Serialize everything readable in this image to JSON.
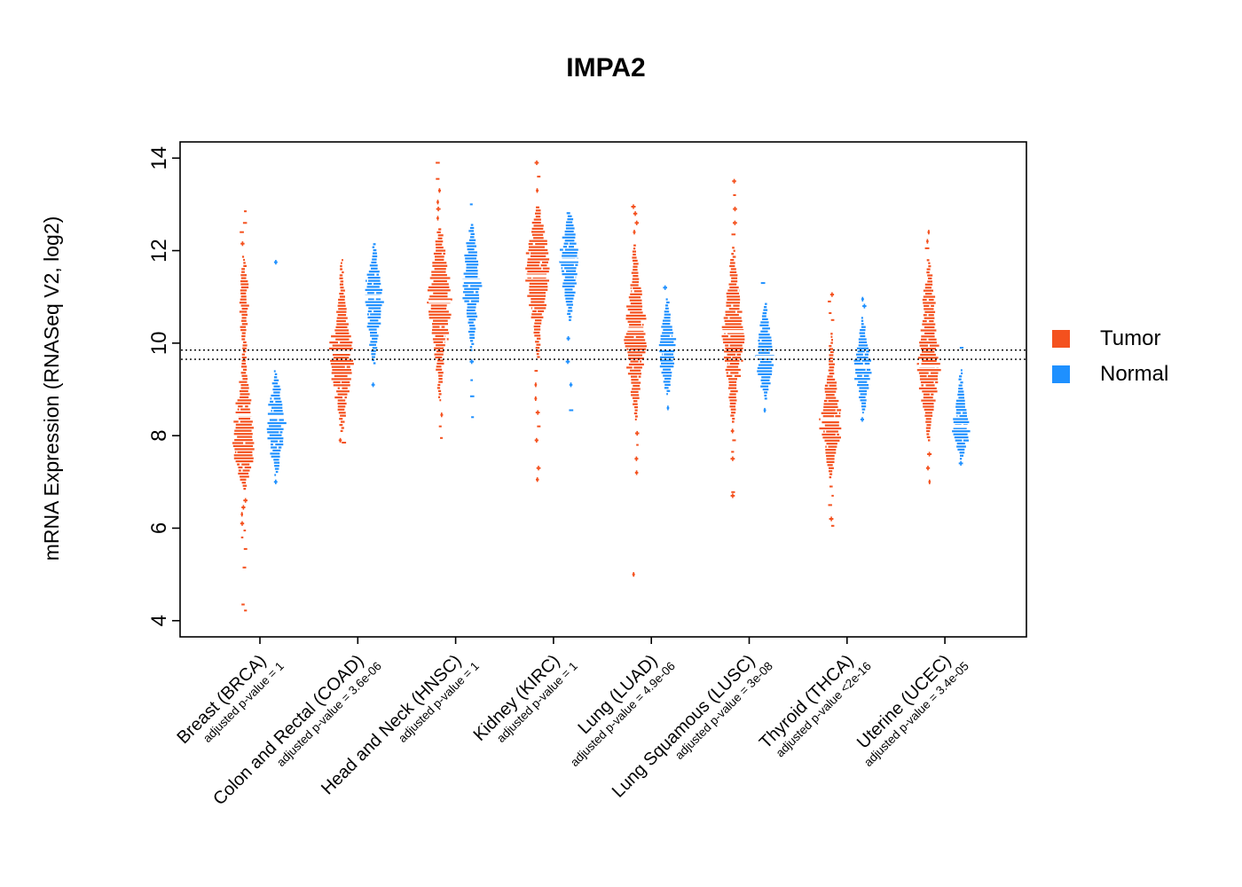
{
  "chart_data": {
    "type": "violin",
    "title": "IMPA2",
    "ylabel": "mRNA Expression (RNASeq V2, log2)",
    "ylim": [
      4,
      14
    ],
    "yticks": [
      4,
      6,
      8,
      10,
      12,
      14
    ],
    "reference_lines": [
      9.85,
      9.65
    ],
    "legend": [
      {
        "label": "Tumor",
        "color": "#F4511E"
      },
      {
        "label": "Normal",
        "color": "#1E90FF"
      }
    ],
    "categories": [
      {
        "name": "Breast (BRCA)",
        "pvalue_label": "adjusted p-value = 1",
        "tumor": {
          "median": 8.45,
          "width_scale": 0.95,
          "profile": [
            [
              6.85,
              0.12
            ],
            [
              7.1,
              0.45
            ],
            [
              7.4,
              0.8
            ],
            [
              7.7,
              1.0
            ],
            [
              8.0,
              1.0
            ],
            [
              8.3,
              0.9
            ],
            [
              8.6,
              0.75
            ],
            [
              8.9,
              0.55
            ],
            [
              9.2,
              0.35
            ],
            [
              9.6,
              0.2
            ],
            [
              10.0,
              0.22
            ],
            [
              10.5,
              0.3
            ],
            [
              10.9,
              0.38
            ],
            [
              11.3,
              0.38
            ],
            [
              11.6,
              0.2
            ],
            [
              11.9,
              0.08
            ]
          ],
          "outliers_high": [
            12.15,
            12.4,
            12.6,
            12.85
          ],
          "outliers_low": [
            6.6,
            6.45,
            6.3,
            6.1,
            5.95,
            5.8,
            5.55,
            5.15,
            4.35,
            4.22
          ]
        },
        "normal": {
          "median": 8.4,
          "width_scale": 0.9,
          "profile": [
            [
              7.15,
              0.12
            ],
            [
              7.4,
              0.4
            ],
            [
              7.7,
              0.7
            ],
            [
              8.0,
              0.95
            ],
            [
              8.3,
              1.0
            ],
            [
              8.6,
              0.85
            ],
            [
              8.9,
              0.55
            ],
            [
              9.15,
              0.3
            ],
            [
              9.4,
              0.14
            ]
          ],
          "outliers_high": [
            11.75
          ],
          "outliers_low": [
            7.0
          ]
        }
      },
      {
        "name": "Colon and Rectal (COAD)",
        "pvalue_label": "adjusted p-value = 3.6e-06",
        "tumor": {
          "median": 9.8,
          "width_scale": 1.05,
          "profile": [
            [
              8.1,
              0.12
            ],
            [
              8.5,
              0.3
            ],
            [
              8.9,
              0.55
            ],
            [
              9.3,
              0.85
            ],
            [
              9.6,
              1.0
            ],
            [
              9.9,
              1.0
            ],
            [
              10.2,
              0.8
            ],
            [
              10.5,
              0.55
            ],
            [
              10.8,
              0.35
            ],
            [
              11.2,
              0.2
            ],
            [
              11.6,
              0.12
            ],
            [
              11.95,
              0.06
            ]
          ],
          "outliers_high": [],
          "outliers_low": [
            7.9,
            7.85
          ]
        },
        "normal": {
          "median": 11.0,
          "width_scale": 0.95,
          "profile": [
            [
              9.5,
              0.1
            ],
            [
              9.9,
              0.3
            ],
            [
              10.3,
              0.55
            ],
            [
              10.7,
              0.85
            ],
            [
              11.0,
              1.0
            ],
            [
              11.3,
              0.85
            ],
            [
              11.6,
              0.55
            ],
            [
              11.9,
              0.3
            ],
            [
              12.15,
              0.12
            ]
          ],
          "outliers_high": [],
          "outliers_low": [
            9.1
          ]
        }
      },
      {
        "name": "Head and Neck (HNSC)",
        "pvalue_label": "adjusted p-value = 1",
        "tumor": {
          "median": 10.9,
          "width_scale": 1.0,
          "profile": [
            [
              8.7,
              0.08
            ],
            [
              9.1,
              0.18
            ],
            [
              9.5,
              0.35
            ],
            [
              9.9,
              0.55
            ],
            [
              10.3,
              0.8
            ],
            [
              10.7,
              1.0
            ],
            [
              11.1,
              1.0
            ],
            [
              11.5,
              0.8
            ],
            [
              11.9,
              0.55
            ],
            [
              12.2,
              0.32
            ],
            [
              12.5,
              0.15
            ]
          ],
          "outliers_high": [
            12.7,
            12.9,
            13.05,
            13.3,
            13.55,
            13.9
          ],
          "outliers_low": [
            8.45,
            8.2,
            7.95
          ]
        },
        "normal": {
          "median": 11.35,
          "width_scale": 0.95,
          "profile": [
            [
              9.85,
              0.12
            ],
            [
              10.2,
              0.3
            ],
            [
              10.6,
              0.55
            ],
            [
              11.0,
              0.85
            ],
            [
              11.35,
              1.0
            ],
            [
              11.7,
              0.85
            ],
            [
              12.0,
              0.6
            ],
            [
              12.3,
              0.32
            ],
            [
              12.6,
              0.14
            ]
          ],
          "outliers_high": [
            13.0
          ],
          "outliers_low": [
            9.6,
            9.2,
            8.85,
            8.4
          ]
        }
      },
      {
        "name": "Kidney (KIRC)",
        "pvalue_label": "adjusted p-value = 1",
        "tumor": {
          "median": 11.45,
          "width_scale": 1.1,
          "profile": [
            [
              9.7,
              0.12
            ],
            [
              10.0,
              0.2
            ],
            [
              10.4,
              0.35
            ],
            [
              10.8,
              0.65
            ],
            [
              11.1,
              0.95
            ],
            [
              11.45,
              1.0
            ],
            [
              11.8,
              0.95
            ],
            [
              12.1,
              0.8
            ],
            [
              12.4,
              0.55
            ],
            [
              12.7,
              0.3
            ],
            [
              13.0,
              0.12
            ]
          ],
          "outliers_high": [
            13.3,
            13.6,
            13.9
          ],
          "outliers_low": [
            9.4,
            9.1,
            8.8,
            8.5,
            8.2,
            7.9,
            7.3,
            7.05
          ]
        },
        "normal": {
          "median": 11.8,
          "width_scale": 0.95,
          "profile": [
            [
              10.5,
              0.12
            ],
            [
              10.9,
              0.38
            ],
            [
              11.3,
              0.7
            ],
            [
              11.6,
              0.95
            ],
            [
              11.9,
              1.0
            ],
            [
              12.2,
              0.75
            ],
            [
              12.5,
              0.45
            ],
            [
              12.85,
              0.15
            ]
          ],
          "outliers_high": [],
          "outliers_low": [
            10.1,
            9.6,
            9.1,
            8.55
          ]
        }
      },
      {
        "name": "Lung (LUAD)",
        "pvalue_label": "adjusted p-value = 4.9e-06",
        "tumor": {
          "median": 10.3,
          "width_scale": 1.0,
          "profile": [
            [
              8.35,
              0.1
            ],
            [
              8.7,
              0.25
            ],
            [
              9.1,
              0.45
            ],
            [
              9.5,
              0.7
            ],
            [
              9.9,
              0.95
            ],
            [
              10.25,
              1.0
            ],
            [
              10.6,
              0.85
            ],
            [
              11.0,
              0.6
            ],
            [
              11.4,
              0.38
            ],
            [
              11.8,
              0.22
            ],
            [
              12.15,
              0.1
            ]
          ],
          "outliers_high": [
            12.4,
            12.6,
            12.8,
            12.95
          ],
          "outliers_low": [
            8.05,
            7.8,
            7.5,
            7.2,
            5.0
          ]
        },
        "normal": {
          "median": 9.9,
          "width_scale": 0.9,
          "profile": [
            [
              8.9,
              0.12
            ],
            [
              9.2,
              0.4
            ],
            [
              9.5,
              0.75
            ],
            [
              9.8,
              1.0
            ],
            [
              10.1,
              0.9
            ],
            [
              10.4,
              0.6
            ],
            [
              10.7,
              0.3
            ],
            [
              10.95,
              0.12
            ]
          ],
          "outliers_high": [
            11.2
          ],
          "outliers_low": [
            8.6
          ]
        }
      },
      {
        "name": "Lung Squamous (LUSC)",
        "pvalue_label": "adjusted p-value = 3e-08",
        "tumor": {
          "median": 10.25,
          "width_scale": 1.0,
          "profile": [
            [
              8.3,
              0.1
            ],
            [
              8.7,
              0.28
            ],
            [
              9.1,
              0.5
            ],
            [
              9.5,
              0.75
            ],
            [
              9.9,
              0.95
            ],
            [
              10.25,
              1.0
            ],
            [
              10.6,
              0.82
            ],
            [
              11.0,
              0.58
            ],
            [
              11.4,
              0.36
            ],
            [
              11.8,
              0.2
            ],
            [
              12.1,
              0.1
            ]
          ],
          "outliers_high": [
            12.35,
            12.6,
            12.9,
            13.2,
            13.5
          ],
          "outliers_low": [
            8.1,
            7.9,
            7.65,
            7.5,
            6.78,
            6.7
          ]
        },
        "normal": {
          "median": 9.7,
          "width_scale": 0.9,
          "profile": [
            [
              8.8,
              0.14
            ],
            [
              9.1,
              0.45
            ],
            [
              9.4,
              0.8
            ],
            [
              9.7,
              1.0
            ],
            [
              10.0,
              0.85
            ],
            [
              10.3,
              0.55
            ],
            [
              10.6,
              0.3
            ],
            [
              10.9,
              0.12
            ]
          ],
          "outliers_high": [
            11.3
          ],
          "outliers_low": [
            8.55
          ]
        }
      },
      {
        "name": "Thyroid (THCA)",
        "pvalue_label": "adjusted p-value <2e-16",
        "tumor": {
          "median": 8.35,
          "width_scale": 1.0,
          "profile": [
            [
              7.1,
              0.12
            ],
            [
              7.45,
              0.4
            ],
            [
              7.8,
              0.75
            ],
            [
              8.1,
              1.0
            ],
            [
              8.4,
              0.95
            ],
            [
              8.75,
              0.7
            ],
            [
              9.1,
              0.48
            ],
            [
              9.45,
              0.3
            ],
            [
              9.8,
              0.2
            ],
            [
              10.1,
              0.12
            ],
            [
              10.35,
              0.07
            ]
          ],
          "outliers_high": [
            10.5,
            10.65,
            10.9,
            11.05
          ],
          "outliers_low": [
            6.9,
            6.7,
            6.5,
            6.2,
            6.05
          ]
        },
        "normal": {
          "median": 9.5,
          "width_scale": 0.9,
          "profile": [
            [
              8.5,
              0.12
            ],
            [
              8.8,
              0.4
            ],
            [
              9.1,
              0.7
            ],
            [
              9.35,
              0.95
            ],
            [
              9.6,
              1.0
            ],
            [
              9.9,
              0.75
            ],
            [
              10.15,
              0.45
            ],
            [
              10.4,
              0.2
            ],
            [
              10.6,
              0.1
            ]
          ],
          "outliers_high": [
            10.8,
            10.95
          ],
          "outliers_low": [
            8.35
          ]
        }
      },
      {
        "name": "Uterine (UCEC)",
        "pvalue_label": "adjusted p-value = 3.4e-05",
        "tumor": {
          "median": 9.5,
          "width_scale": 1.05,
          "profile": [
            [
              7.9,
              0.1
            ],
            [
              8.3,
              0.3
            ],
            [
              8.7,
              0.55
            ],
            [
              9.1,
              0.85
            ],
            [
              9.45,
              1.0
            ],
            [
              9.8,
              0.85
            ],
            [
              10.2,
              0.68
            ],
            [
              10.6,
              0.6
            ],
            [
              11.0,
              0.5
            ],
            [
              11.3,
              0.3
            ],
            [
              11.6,
              0.15
            ],
            [
              11.9,
              0.07
            ]
          ],
          "outliers_high": [
            12.05,
            12.2,
            12.4
          ],
          "outliers_low": [
            7.6,
            7.3,
            7.0
          ]
        },
        "normal": {
          "median": 8.2,
          "width_scale": 0.9,
          "profile": [
            [
              7.5,
              0.15
            ],
            [
              7.75,
              0.55
            ],
            [
              8.0,
              0.9
            ],
            [
              8.2,
              1.0
            ],
            [
              8.45,
              0.8
            ],
            [
              8.7,
              0.5
            ],
            [
              9.0,
              0.3
            ],
            [
              9.3,
              0.15
            ],
            [
              9.6,
              0.08
            ]
          ],
          "outliers_high": [
            9.9
          ],
          "outliers_low": [
            7.4
          ]
        }
      }
    ]
  }
}
